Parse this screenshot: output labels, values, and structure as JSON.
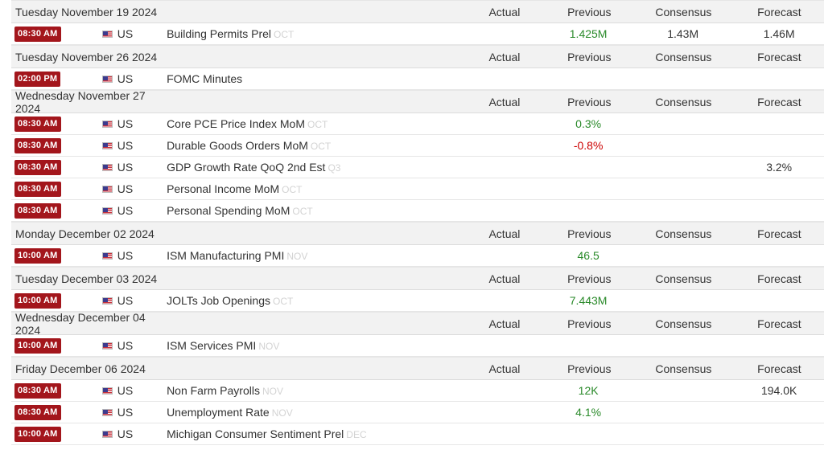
{
  "columns": {
    "actual": "Actual",
    "previous": "Previous",
    "consensus": "Consensus",
    "forecast": "Forecast"
  },
  "days": [
    {
      "date": "Tuesday November 19 2024",
      "events": [
        {
          "time": "08:30 AM",
          "country": "US",
          "name": "Building Permits Prel",
          "period": "OCT",
          "actual": "",
          "previous": "1.425M",
          "previous_trend": "positive",
          "consensus": "1.43M",
          "forecast": "1.46M"
        }
      ]
    },
    {
      "date": "Tuesday November 26 2024",
      "events": [
        {
          "time": "02:00 PM",
          "country": "US",
          "name": "FOMC Minutes",
          "period": "",
          "actual": "",
          "previous": "",
          "previous_trend": "",
          "consensus": "",
          "forecast": ""
        }
      ]
    },
    {
      "date": "Wednesday November 27 2024",
      "events": [
        {
          "time": "08:30 AM",
          "country": "US",
          "name": "Core PCE Price Index MoM",
          "period": "OCT",
          "actual": "",
          "previous": "0.3%",
          "previous_trend": "positive",
          "consensus": "",
          "forecast": ""
        },
        {
          "time": "08:30 AM",
          "country": "US",
          "name": "Durable Goods Orders MoM",
          "period": "OCT",
          "actual": "",
          "previous": "-0.8%",
          "previous_trend": "negative",
          "consensus": "",
          "forecast": ""
        },
        {
          "time": "08:30 AM",
          "country": "US",
          "name": "GDP Growth Rate QoQ 2nd Est",
          "period": "Q3",
          "actual": "",
          "previous": "",
          "previous_trend": "",
          "consensus": "",
          "forecast": "3.2%"
        },
        {
          "time": "08:30 AM",
          "country": "US",
          "name": "Personal Income MoM",
          "period": "OCT",
          "actual": "",
          "previous": "",
          "previous_trend": "",
          "consensus": "",
          "forecast": ""
        },
        {
          "time": "08:30 AM",
          "country": "US",
          "name": "Personal Spending MoM",
          "period": "OCT",
          "actual": "",
          "previous": "",
          "previous_trend": "",
          "consensus": "",
          "forecast": ""
        }
      ]
    },
    {
      "date": "Monday December 02 2024",
      "events": [
        {
          "time": "10:00 AM",
          "country": "US",
          "name": "ISM Manufacturing PMI",
          "period": "NOV",
          "actual": "",
          "previous": "46.5",
          "previous_trend": "positive",
          "consensus": "",
          "forecast": ""
        }
      ]
    },
    {
      "date": "Tuesday December 03 2024",
      "events": [
        {
          "time": "10:00 AM",
          "country": "US",
          "name": "JOLTs Job Openings",
          "period": "OCT",
          "actual": "",
          "previous": "7.443M",
          "previous_trend": "positive",
          "consensus": "",
          "forecast": ""
        }
      ]
    },
    {
      "date": "Wednesday December 04 2024",
      "events": [
        {
          "time": "10:00 AM",
          "country": "US",
          "name": "ISM Services PMI",
          "period": "NOV",
          "actual": "",
          "previous": "",
          "previous_trend": "",
          "consensus": "",
          "forecast": ""
        }
      ]
    },
    {
      "date": "Friday December 06 2024",
      "events": [
        {
          "time": "08:30 AM",
          "country": "US",
          "name": "Non Farm Payrolls",
          "period": "NOV",
          "actual": "",
          "previous": "12K",
          "previous_trend": "positive",
          "consensus": "",
          "forecast": "194.0K"
        },
        {
          "time": "08:30 AM",
          "country": "US",
          "name": "Unemployment Rate",
          "period": "NOV",
          "actual": "",
          "previous": "4.1%",
          "previous_trend": "positive",
          "consensus": "",
          "forecast": ""
        },
        {
          "time": "10:00 AM",
          "country": "US",
          "name": "Michigan Consumer Sentiment Prel",
          "period": "DEC",
          "actual": "",
          "previous": "",
          "previous_trend": "",
          "consensus": "",
          "forecast": ""
        }
      ]
    }
  ],
  "colors": {
    "time_badge": "#a3161c",
    "previous_positive": "#2a8a2a",
    "previous_negative": "#cc0000",
    "period_text": "#d3d3d3",
    "header_bg": "#f2f2f2"
  },
  "icons": {
    "country_flag": "us-flag-icon"
  }
}
